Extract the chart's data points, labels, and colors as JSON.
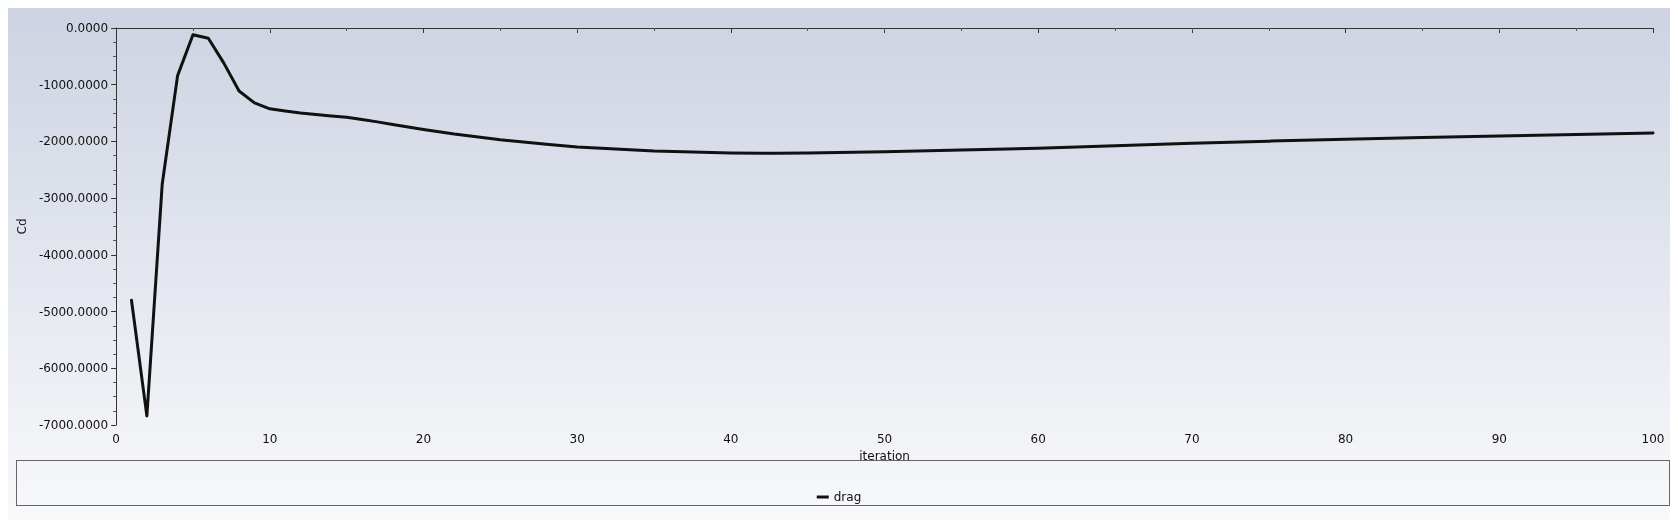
{
  "chart_data": {
    "type": "line",
    "xlabel": "iteration",
    "ylabel": "Cd",
    "x": [
      1,
      2,
      3,
      4,
      5,
      6,
      7,
      8,
      9,
      10,
      11,
      12,
      13,
      14,
      15,
      16,
      17,
      18,
      19,
      20,
      22,
      25,
      28,
      30,
      35,
      40,
      43,
      45,
      50,
      55,
      60,
      65,
      70,
      75,
      80,
      85,
      90,
      95,
      100
    ],
    "series": [
      {
        "name": "drag",
        "color": "#111111",
        "values": [
          -4800,
          -6840,
          -2750,
          -840,
          -120,
          -180,
          -615,
          -1110,
          -1320,
          -1425,
          -1465,
          -1500,
          -1525,
          -1550,
          -1575,
          -1615,
          -1655,
          -1700,
          -1745,
          -1790,
          -1870,
          -1970,
          -2050,
          -2100,
          -2170,
          -2205,
          -2210,
          -2205,
          -2180,
          -2150,
          -2120,
          -2075,
          -2030,
          -1995,
          -1960,
          -1930,
          -1905,
          -1880,
          -1850
        ]
      }
    ],
    "xlim": [
      0,
      100
    ],
    "xticks": [
      0,
      10,
      20,
      30,
      40,
      50,
      60,
      70,
      80,
      90,
      100
    ],
    "ylim": [
      -7000,
      0
    ],
    "yticks": [
      {
        "value": -7000,
        "label": "-7000.0000"
      },
      {
        "value": -6000,
        "label": "-6000.0000"
      },
      {
        "value": -5000,
        "label": "-5000.0000"
      },
      {
        "value": -4000,
        "label": "-4000.0000"
      },
      {
        "value": -3000,
        "label": "-3000.0000"
      },
      {
        "value": -2000,
        "label": "-2000.0000"
      },
      {
        "value": -1000,
        "label": "-1000.0000"
      },
      {
        "value": 0,
        "label": "0.0000"
      }
    ],
    "grid": false,
    "legend": "bottom",
    "marker": "none",
    "line_style": "solid"
  }
}
